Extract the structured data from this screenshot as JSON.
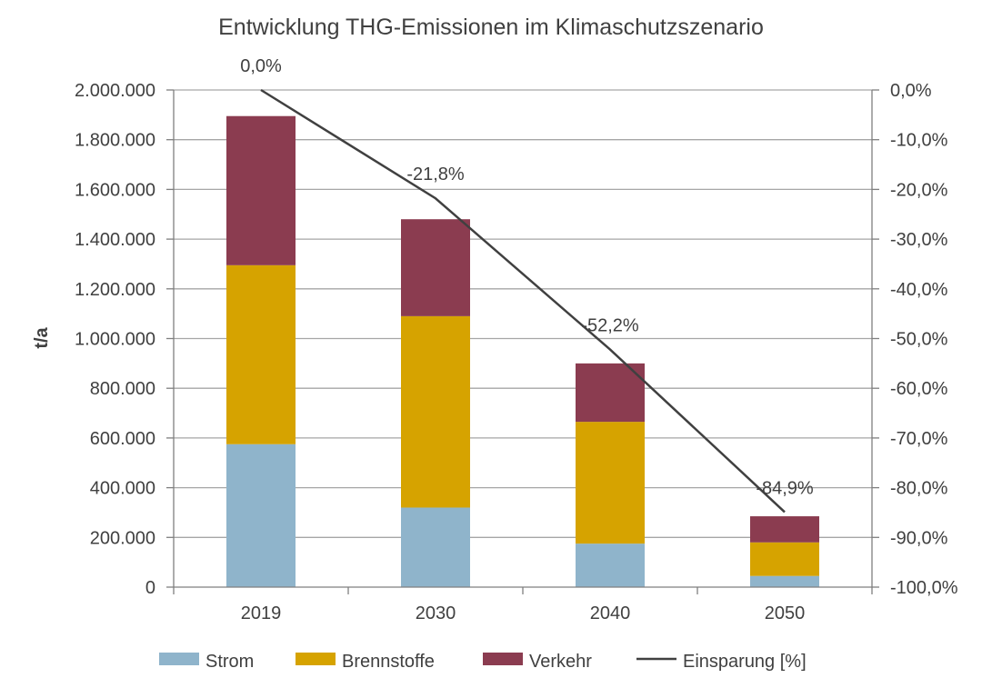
{
  "chart_data": {
    "type": "bar",
    "stacked": true,
    "title": "Entwicklung THG-Emissionen im Klimaschutzszenario",
    "ylabel": "t/a",
    "categories": [
      "2019",
      "2030",
      "2040",
      "2050"
    ],
    "ylim": [
      0,
      2000000
    ],
    "y_ticks": [
      "0",
      "200.000",
      "400.000",
      "600.000",
      "800.000",
      "1.000.000",
      "1.200.000",
      "1.400.000",
      "1.600.000",
      "1.800.000",
      "2.000.000"
    ],
    "y2lim": [
      -100,
      0
    ],
    "y2_ticks": [
      "-100,0%",
      "-90,0%",
      "-80,0%",
      "-70,0%",
      "-60,0%",
      "-50,0%",
      "-40,0%",
      "-30,0%",
      "-20,0%",
      "-10,0%",
      "0,0%"
    ],
    "series": [
      {
        "name": "Strom",
        "color": "#8fb4cb",
        "values": [
          575000,
          320000,
          175000,
          45000
        ]
      },
      {
        "name": "Brennstoffe",
        "color": "#d6a300",
        "values": [
          720000,
          770000,
          490000,
          135000
        ]
      },
      {
        "name": "Verkehr",
        "color": "#8b3c50",
        "values": [
          600000,
          390000,
          235000,
          105000
        ]
      }
    ],
    "line": {
      "name": "Einsparung [%]",
      "color": "#404040",
      "axis": "secondary",
      "values": [
        0.0,
        -21.8,
        -52.2,
        -84.9
      ],
      "labels": [
        "0,0%",
        "-21,8%",
        "-52,2%",
        "-84,9%"
      ]
    },
    "grid": true,
    "legend_position": "bottom"
  }
}
